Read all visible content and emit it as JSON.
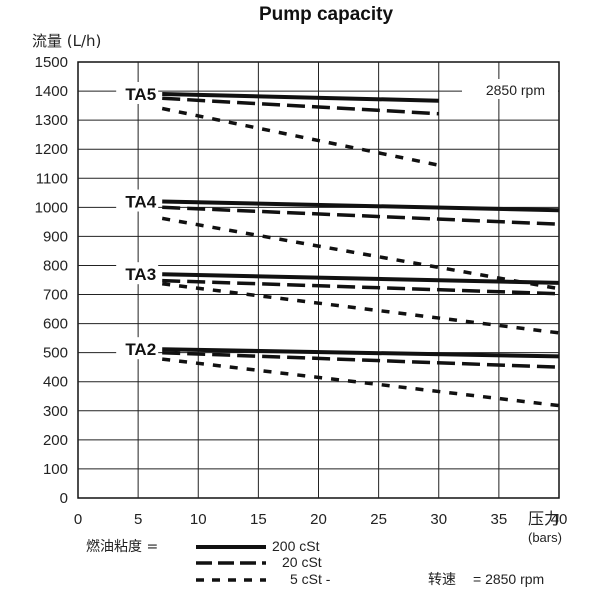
{
  "chart_data": {
    "type": "line",
    "title": "Pump capacity",
    "ylabel": "流量 (L/h)",
    "xlabel": "压力",
    "xunit": "(bars)",
    "xlim": [
      0,
      40
    ],
    "ylim": [
      0,
      1500
    ],
    "xticks": [
      0,
      5,
      10,
      15,
      20,
      25,
      30,
      35,
      40
    ],
    "yticks": [
      0,
      100,
      200,
      300,
      400,
      500,
      600,
      700,
      800,
      900,
      1000,
      1100,
      1200,
      1300,
      1400,
      1500
    ],
    "grid": true,
    "speed_label": "2850 rpm",
    "groups": [
      {
        "name": "TA5",
        "series": [
          {
            "viscosity": "200 cSt",
            "x": [
              7,
              30
            ],
            "y": [
              1390,
              1367
            ]
          },
          {
            "viscosity": "20 cSt",
            "x": [
              7,
              30
            ],
            "y": [
              1375,
              1322
            ]
          },
          {
            "viscosity": "5 cSt",
            "x": [
              7,
              30
            ],
            "y": [
              1340,
              1145
            ]
          }
        ]
      },
      {
        "name": "TA4",
        "series": [
          {
            "viscosity": "200 cSt",
            "x": [
              7,
              40
            ],
            "y": [
              1020,
              990
            ]
          },
          {
            "viscosity": "20 cSt",
            "x": [
              7,
              40
            ],
            "y": [
              1000,
              942
            ]
          },
          {
            "viscosity": "5 cSt",
            "x": [
              7,
              40
            ],
            "y": [
              962,
              720
            ]
          }
        ]
      },
      {
        "name": "TA3",
        "series": [
          {
            "viscosity": "200 cSt",
            "x": [
              7,
              40
            ],
            "y": [
              770,
              740
            ]
          },
          {
            "viscosity": "20 cSt",
            "x": [
              7,
              40
            ],
            "y": [
              748,
              703
            ]
          },
          {
            "viscosity": "5 cSt",
            "x": [
              7,
              40
            ],
            "y": [
              737,
              568
            ]
          }
        ]
      },
      {
        "name": "TA2",
        "series": [
          {
            "viscosity": "200 cSt",
            "x": [
              7,
              40
            ],
            "y": [
              512,
              487
            ]
          },
          {
            "viscosity": "20 cSt",
            "x": [
              7,
              40
            ],
            "y": [
              500,
              450
            ]
          },
          {
            "viscosity": "5 cSt",
            "x": [
              7,
              40
            ],
            "y": [
              478,
              318
            ]
          }
        ]
      }
    ]
  },
  "legend": {
    "title": "燃油粘度 =",
    "items": [
      {
        "label": "200 cSt",
        "style": "solid"
      },
      {
        "label": "20 cSt",
        "style": "dashed"
      },
      {
        "label": "5 cSt  -",
        "style": "dotted"
      }
    ]
  },
  "footer": {
    "speed_label": "转速",
    "speed_value": "= 2850 rpm"
  }
}
